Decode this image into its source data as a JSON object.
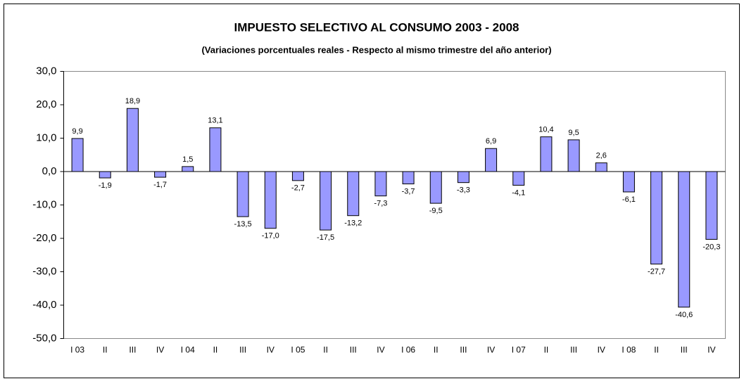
{
  "chart_data": {
    "type": "bar",
    "title": "IMPUESTO SELECTIVO AL CONSUMO  2003 - 2008",
    "subtitle": "(Variaciones porcentuales reales - Respecto al mismo trimestre del año anterior)",
    "categories": [
      "I 03",
      "II",
      "III",
      "IV",
      "I 04",
      "II",
      "III",
      "IV",
      "I 05",
      "II",
      "III",
      "IV",
      "I 06",
      "II",
      "III",
      "IV",
      "I 07",
      "II",
      "III",
      "IV",
      "I 08",
      "II",
      "III",
      "IV"
    ],
    "values": [
      9.9,
      -1.9,
      18.9,
      -1.7,
      1.5,
      13.1,
      -13.5,
      -17.0,
      -2.7,
      -17.5,
      -13.2,
      -7.3,
      -3.7,
      -9.5,
      -3.3,
      6.9,
      -4.1,
      10.4,
      9.5,
      2.6,
      -6.1,
      -27.7,
      -40.6,
      -20.3
    ],
    "value_labels": [
      "9,9",
      "-1,9",
      "18,9",
      "-1,7",
      "1,5",
      "13,1",
      "-13,5",
      "-17,0",
      "-2,7",
      "-17,5",
      "-13,2",
      "-7,3",
      "-3,7",
      "-9,5",
      "-3,3",
      "6,9",
      "-4,1",
      "10,4",
      "9,5",
      "2,6",
      "-6,1",
      "-27,7",
      "-40,6",
      "-20,3"
    ],
    "color": "#9999ff",
    "ylim": [
      -50,
      30
    ],
    "yticks": [
      {
        "value": 30,
        "label": "30,0"
      },
      {
        "value": 20,
        "label": "20,0"
      },
      {
        "value": 10,
        "label": "10,0"
      },
      {
        "value": 0,
        "label": "0,0"
      },
      {
        "value": -10,
        "label": "-10,0"
      },
      {
        "value": -20,
        "label": "-20,0"
      },
      {
        "value": -30,
        "label": "-30,0"
      },
      {
        "value": -40,
        "label": "-40,0"
      },
      {
        "value": -50,
        "label": "-50,0"
      }
    ],
    "grid": false
  }
}
